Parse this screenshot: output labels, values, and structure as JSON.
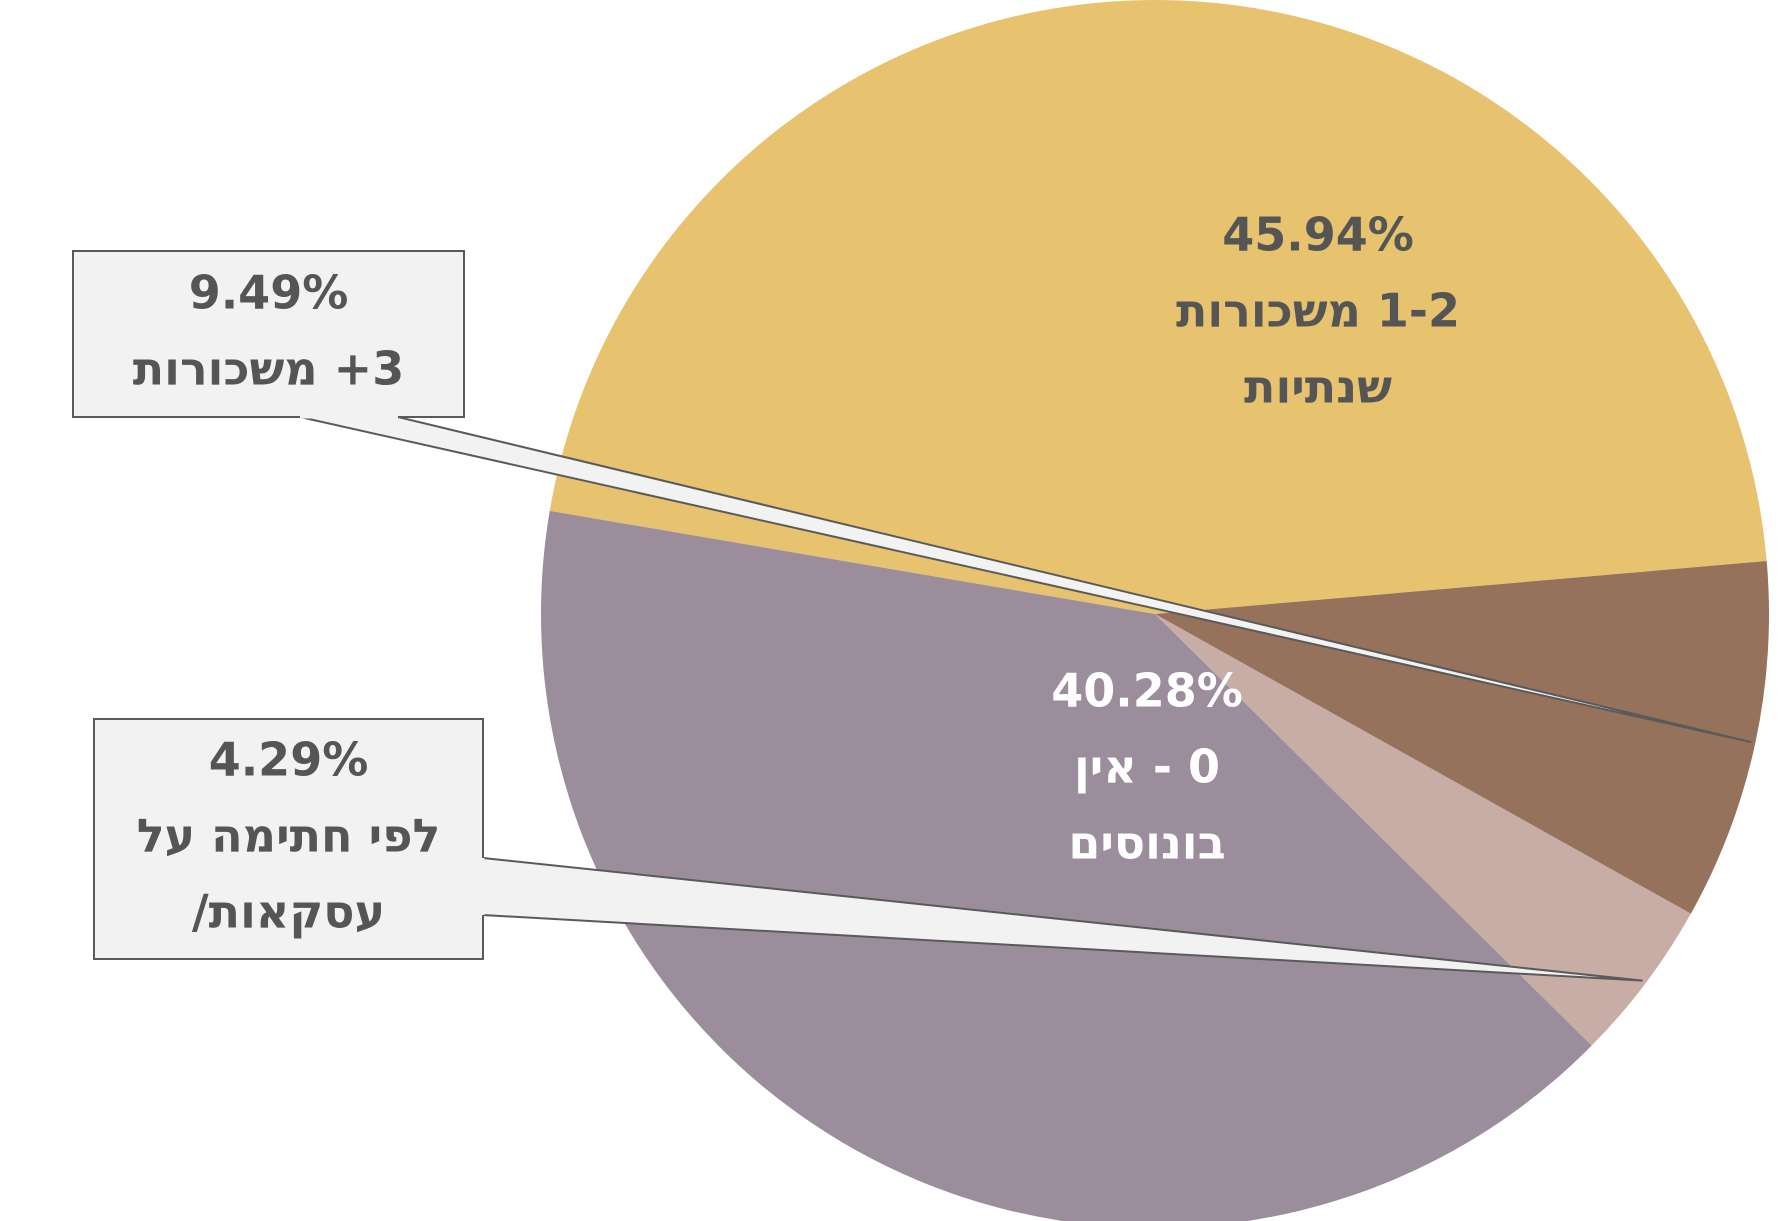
{
  "chart_data": {
    "type": "pie",
    "title": "",
    "slices": [
      {
        "pct_label": "45.94%",
        "lines": [
          "1-2 משכורות",
          "שנתיות"
        ],
        "value": 45.94,
        "color": "#E7C36F",
        "text_color": "#555555",
        "label_style": "inside"
      },
      {
        "pct_label": "40.28%",
        "lines": [
          "0 - אין",
          "בונוסים"
        ],
        "value": 40.28,
        "color": "#9B8D9B",
        "text_color": "#FFFFFF",
        "label_style": "inside"
      },
      {
        "pct_label": "4.29%",
        "lines": [
          "לפי חתימה על",
          "עסקאות/"
        ],
        "value": 4.29,
        "color": "#C8ADA6",
        "text_color": "#555555",
        "label_style": "callout"
      },
      {
        "pct_label": "9.49%",
        "lines": [
          "3+ משכורות"
        ],
        "value": 9.49,
        "color": "#96715B",
        "text_color": "#555555",
        "label_style": "callout"
      }
    ],
    "callout_fill": "#F2F2F2",
    "callout_stroke": "#5A5A5A"
  }
}
